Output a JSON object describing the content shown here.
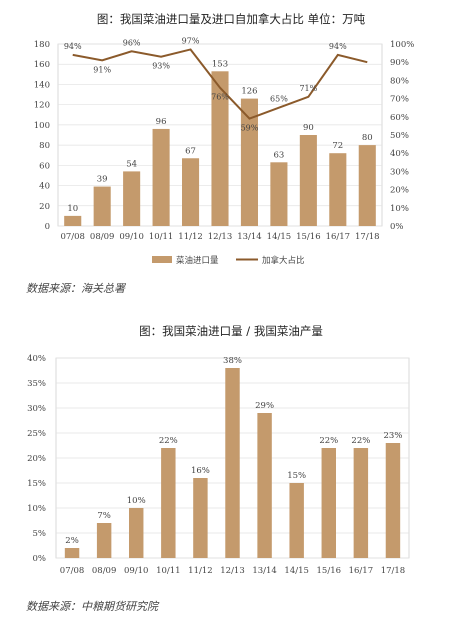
{
  "chart_data": [
    {
      "type": "bar+line",
      "title": "图：我国菜油进口量及进口自加拿大占比 单位：万吨",
      "categories": [
        "07/08",
        "08/09",
        "09/10",
        "10/11",
        "11/12",
        "12/13",
        "13/14",
        "14/15",
        "15/16",
        "16/17",
        "17/18"
      ],
      "series": [
        {
          "name": "菜油进口量",
          "type": "bar",
          "axis": "left",
          "values": [
            10,
            39,
            54,
            96,
            67,
            153,
            126,
            63,
            90,
            72,
            80
          ],
          "labels": [
            "10",
            "39",
            "54",
            "96",
            "67",
            "153",
            "126",
            "63",
            "90",
            "72",
            "80"
          ],
          "color": "#c49a6c"
        },
        {
          "name": "加拿大占比",
          "type": "line",
          "axis": "right",
          "values": [
            94,
            91,
            96,
            93,
            97,
            76,
            59,
            65,
            71,
            94,
            90
          ],
          "labels": [
            "94%",
            "91%",
            "96%",
            "93%",
            "97%",
            "76%",
            "59%",
            "65%",
            "71%",
            "94%",
            ""
          ],
          "color": "#8b5a2b"
        }
      ],
      "left_axis": {
        "ylim": [
          0,
          180
        ],
        "ticks": [
          "0",
          "20",
          "40",
          "60",
          "80",
          "100",
          "120",
          "140",
          "160",
          "180"
        ]
      },
      "right_axis": {
        "ylim": [
          0,
          100
        ],
        "ticks": [
          "0%",
          "10%",
          "20%",
          "30%",
          "40%",
          "50%",
          "60%",
          "70%",
          "80%",
          "90%",
          "100%"
        ]
      },
      "legend": "bottom",
      "source": "数据来源：海关总署"
    },
    {
      "type": "bar",
      "title": "图：我国菜油进口量 / 我国菜油产量",
      "categories": [
        "07/08",
        "08/09",
        "09/10",
        "10/11",
        "11/12",
        "12/13",
        "13/14",
        "14/15",
        "15/16",
        "16/17",
        "17/18"
      ],
      "values": [
        2,
        7,
        10,
        22,
        16,
        38,
        29,
        15,
        22,
        22,
        23
      ],
      "labels": [
        "2%",
        "7%",
        "10%",
        "22%",
        "16%",
        "38%",
        "29%",
        "15%",
        "22%",
        "22%",
        "23%"
      ],
      "ylim": [
        0,
        40
      ],
      "ticks": [
        "0%",
        "5%",
        "10%",
        "15%",
        "20%",
        "25%",
        "30%",
        "35%",
        "40%"
      ],
      "color": "#c49a6c",
      "source": "数据来源：中粮期货研究院"
    }
  ]
}
